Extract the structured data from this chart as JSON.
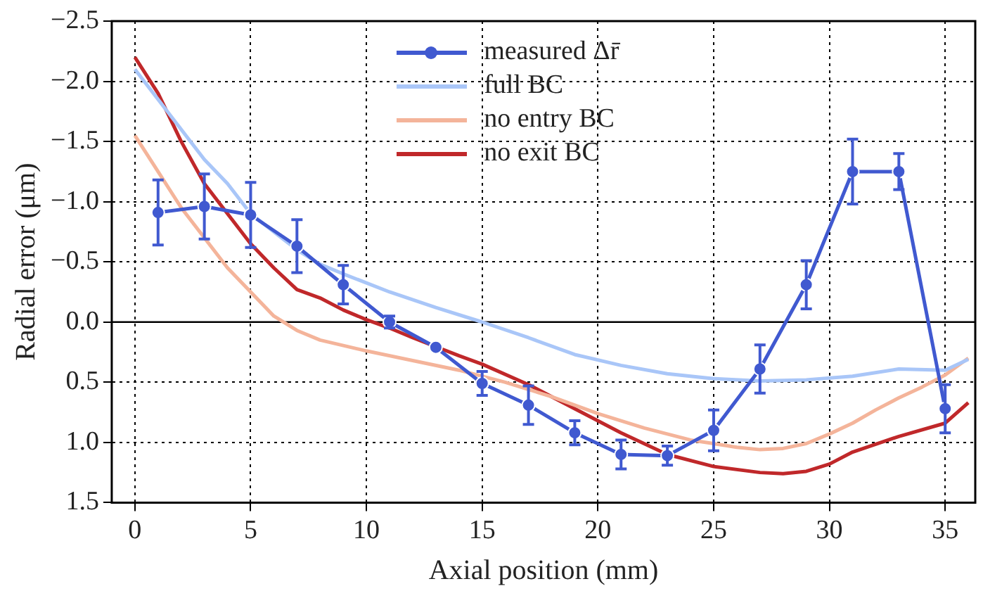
{
  "chart_data": {
    "type": "line",
    "xlabel": "Axial position (mm)",
    "ylabel": "Radial error (μm)",
    "xlim": [
      -1,
      36.3
    ],
    "xticks": [
      0,
      5,
      10,
      15,
      20,
      25,
      30,
      35
    ],
    "ylim": [
      1.5,
      -2.5
    ],
    "yticks": [
      {
        "value": -2.5,
        "label": "−2.5"
      },
      {
        "value": -2.0,
        "label": "−2.0"
      },
      {
        "value": -1.5,
        "label": "−1.5"
      },
      {
        "value": -1.0,
        "label": "−1.0"
      },
      {
        "value": -0.5,
        "label": "−0.5"
      },
      {
        "value": 0,
        "label": "0.0"
      },
      {
        "value": 0.5,
        "label": "0.5"
      },
      {
        "value": 1.0,
        "label": "1.0"
      },
      {
        "value": 1.5,
        "label": "1.5"
      }
    ],
    "grid": true,
    "legend": "top",
    "ref_lines": [
      {
        "axis": "y",
        "value": 0,
        "color": "#000000"
      }
    ],
    "series": [
      {
        "name": "measured Δr̄",
        "color": "#4059d0",
        "marker": "circle",
        "x": [
          1,
          3,
          5,
          7,
          9,
          11,
          13,
          15,
          17,
          19,
          21,
          23,
          25,
          27,
          29,
          31,
          33,
          35
        ],
        "values": [
          -0.91,
          -0.96,
          -0.89,
          -0.63,
          -0.31,
          0.0,
          0.21,
          0.51,
          0.69,
          0.92,
          1.1,
          1.11,
          0.9,
          0.39,
          -0.31,
          -1.25,
          -1.25,
          0.72
        ],
        "errors": [
          0.27,
          0.27,
          0.27,
          0.22,
          0.16,
          0.05,
          null,
          0.1,
          0.16,
          0.1,
          0.12,
          0.08,
          0.17,
          0.2,
          0.2,
          0.27,
          0.15,
          0.2
        ]
      },
      {
        "name": "full BC",
        "color": "#a9c6f8",
        "x": [
          0,
          1,
          2,
          3,
          4,
          5,
          6,
          7,
          8,
          9,
          11,
          13,
          15,
          17,
          19,
          21,
          23,
          25,
          27,
          29,
          31,
          33,
          35,
          36
        ],
        "values": [
          -2.1,
          -1.85,
          -1.6,
          -1.35,
          -1.15,
          -0.9,
          -0.75,
          -0.6,
          -0.48,
          -0.4,
          -0.25,
          -0.12,
          0.0,
          0.13,
          0.27,
          0.36,
          0.43,
          0.47,
          0.49,
          0.48,
          0.45,
          0.39,
          0.4,
          0.31
        ]
      },
      {
        "name": "no entry BC",
        "color": "#f4b49a",
        "x": [
          0,
          1,
          2,
          3,
          4,
          5,
          6,
          7,
          8,
          10,
          12,
          14,
          16,
          18,
          20,
          22,
          24,
          26,
          27,
          28,
          29,
          30,
          31,
          32,
          33,
          34,
          35,
          36
        ],
        "values": [
          -1.55,
          -1.25,
          -0.95,
          -0.7,
          -0.45,
          -0.25,
          -0.05,
          0.07,
          0.15,
          0.24,
          0.32,
          0.4,
          0.5,
          0.62,
          0.76,
          0.88,
          0.98,
          1.04,
          1.06,
          1.05,
          1.01,
          0.93,
          0.84,
          0.73,
          0.63,
          0.54,
          0.44,
          0.3
        ]
      },
      {
        "name": "no exit BC",
        "color": "#c0282a",
        "x": [
          0,
          1,
          2,
          3,
          4,
          5,
          6,
          7,
          8,
          9,
          10,
          11,
          12,
          14,
          15,
          17,
          19,
          21,
          23,
          25,
          27,
          28,
          29,
          30,
          31,
          33,
          35,
          36
        ],
        "values": [
          -2.2,
          -1.9,
          -1.5,
          -1.15,
          -0.9,
          -0.65,
          -0.45,
          -0.27,
          -0.2,
          -0.1,
          -0.02,
          0.05,
          0.13,
          0.28,
          0.35,
          0.52,
          0.72,
          0.92,
          1.1,
          1.2,
          1.25,
          1.26,
          1.24,
          1.18,
          1.08,
          0.95,
          0.84,
          0.67
        ]
      }
    ]
  }
}
